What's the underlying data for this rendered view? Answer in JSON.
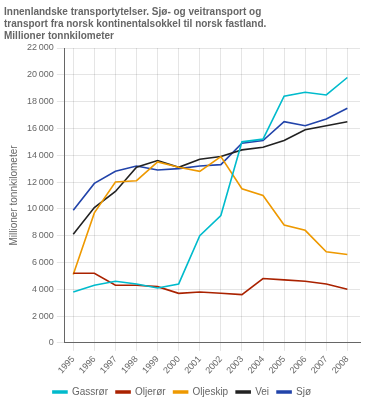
{
  "chart_data": {
    "type": "line",
    "title": "Innenlandske transportytelser. Sjø- og veitransport og\ntransport fra norsk kontinentalsokkel til norsk fastland.\nMillioner tonnkilometer",
    "ylabel": "Millioner tonnkilometer",
    "x": [
      1995,
      1996,
      1997,
      1998,
      1999,
      2000,
      2001,
      2002,
      2003,
      2004,
      2005,
      2006,
      2007,
      2008
    ],
    "xlim": [
      1994.6,
      2008.6
    ],
    "xticks": [
      1995,
      1996,
      1997,
      1998,
      1999,
      2000,
      2001,
      2002,
      2003,
      2004,
      2005,
      2006,
      2007,
      2008
    ],
    "ylim": [
      0,
      22000
    ],
    "yticks": [
      0,
      {
        "value": 2000,
        "label": "2 000"
      },
      {
        "value": 4000,
        "label": "4 000"
      },
      {
        "value": 6000,
        "label": "6 000"
      },
      {
        "value": 8000,
        "label": "8 000"
      },
      {
        "value": 10000,
        "label": "10 000"
      },
      {
        "value": 12000,
        "label": "12 000"
      },
      {
        "value": 14000,
        "label": "14 000"
      },
      {
        "value": 16000,
        "label": "16 000"
      },
      {
        "value": 18000,
        "label": "18 000"
      },
      {
        "value": 20000,
        "label": "20 000"
      },
      {
        "value": 22000,
        "label": "22 000"
      }
    ],
    "grid": true,
    "legend": "bottom",
    "series": [
      {
        "name": "Gassrør",
        "color": "#00BBCC",
        "values": [
          3800,
          4300,
          4600,
          4400,
          4100,
          4400,
          8000,
          9500,
          15000,
          15200,
          18400,
          18700,
          18500,
          19800
        ]
      },
      {
        "name": "Oljerør",
        "color": "#AA2200",
        "values": [
          5200,
          5200,
          4300,
          4300,
          4200,
          3700,
          3800,
          3700,
          3600,
          4800,
          4700,
          4600,
          4400,
          4000
        ]
      },
      {
        "name": "Oljeskip",
        "color": "#EE9900",
        "values": [
          5100,
          9700,
          12000,
          12100,
          13500,
          13100,
          12800,
          13900,
          11500,
          11000,
          8800,
          8400,
          6800,
          6600
        ]
      },
      {
        "name": "Vei",
        "color": "#222222",
        "values": [
          8100,
          10100,
          11300,
          13100,
          13600,
          13100,
          13700,
          13900,
          14400,
          14600,
          15100,
          15900,
          16200,
          16500
        ]
      },
      {
        "name": "Sjø",
        "color": "#2244AA",
        "values": [
          9900,
          11900,
          12800,
          13200,
          12900,
          13000,
          13200,
          13300,
          14900,
          15100,
          16500,
          16200,
          16700,
          17500
        ]
      }
    ]
  }
}
